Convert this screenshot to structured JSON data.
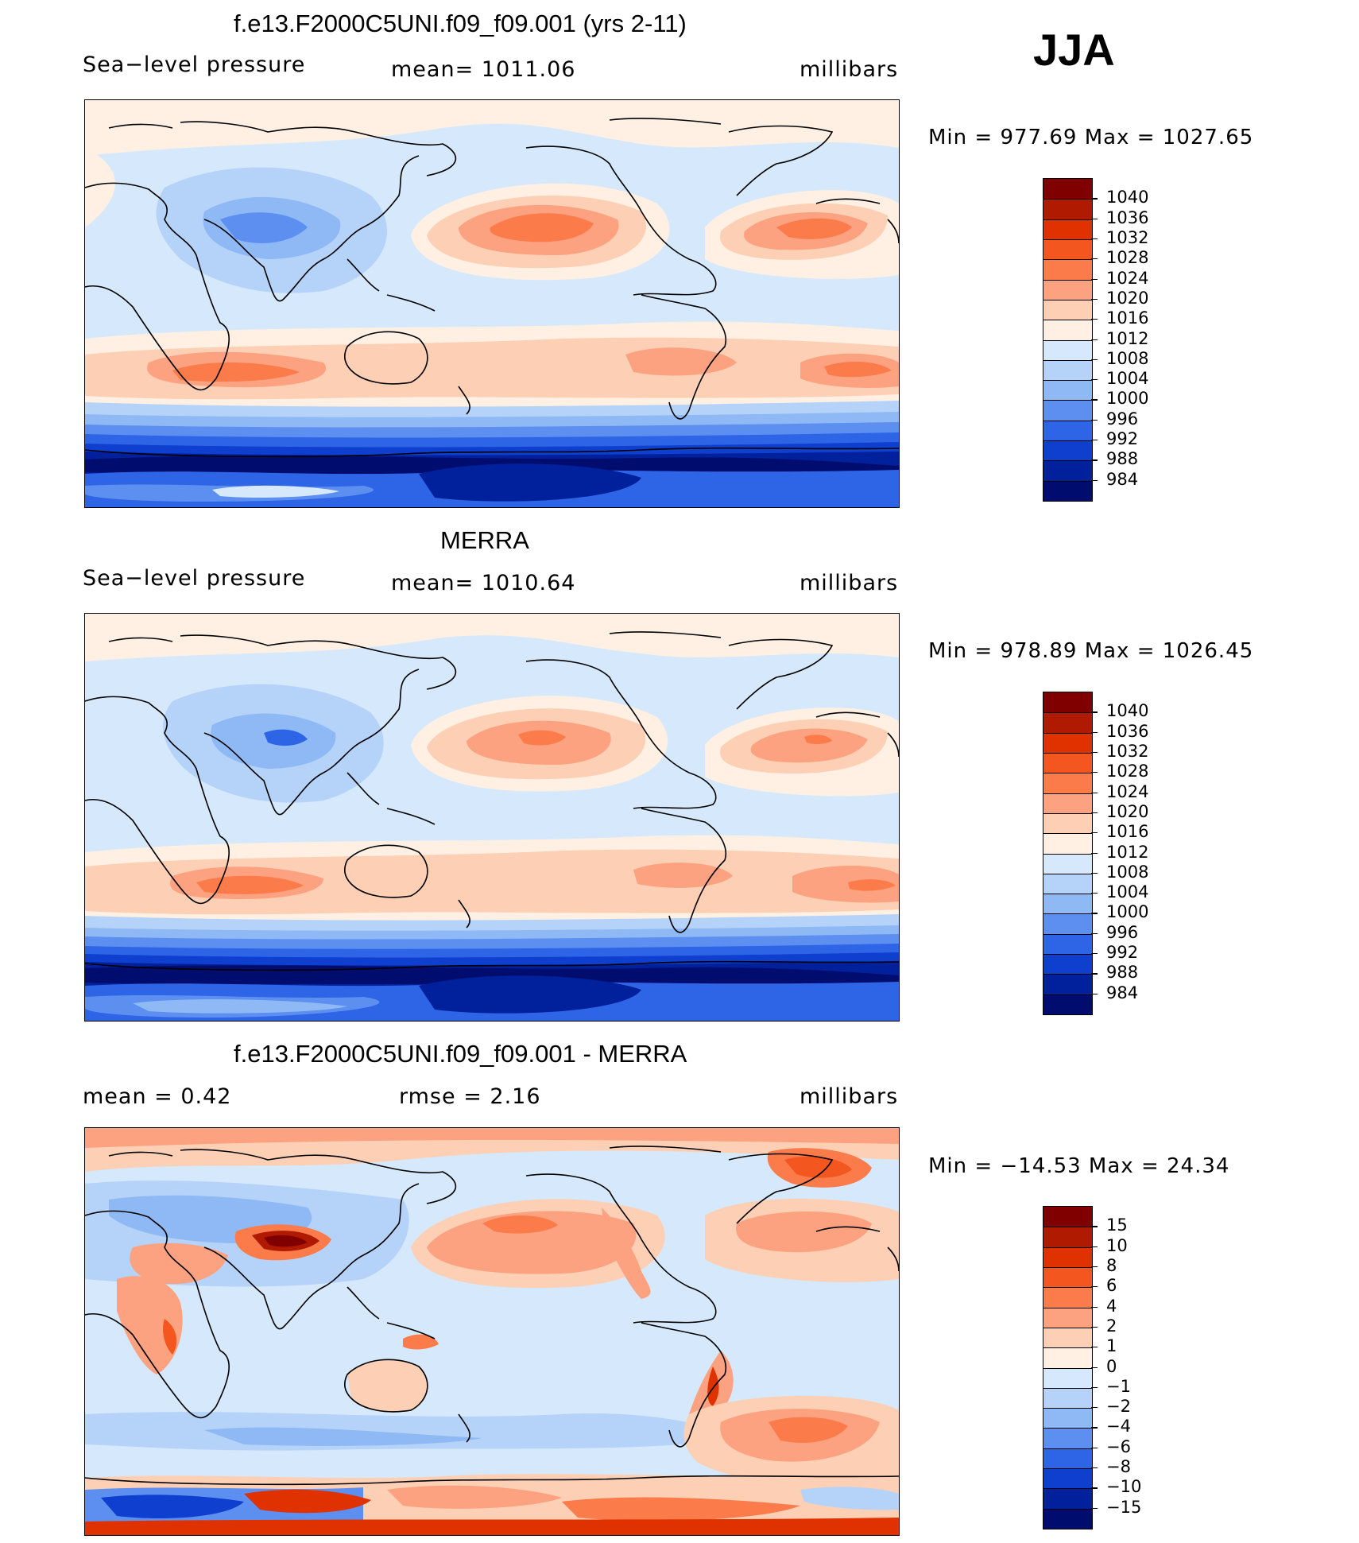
{
  "season": "JJA",
  "panels": [
    {
      "title": "f.e13.F2000C5UNI.f09_f09.001 (yrs 2-11)",
      "left_label": "Sea−level pressure",
      "mid_label": "mean=  1011.06",
      "units": "millibars",
      "minmax": "Min  =  977.69  Max  =  1027.65",
      "colorbar_levels": [
        "1040",
        "1036",
        "1032",
        "1028",
        "1024",
        "1020",
        "1016",
        "1012",
        "1008",
        "1004",
        "1000",
        "996",
        "992",
        "988",
        "984"
      ],
      "colorbar_colors": [
        "#800000",
        "#b01a00",
        "#e03200",
        "#f4561f",
        "#fb7b4b",
        "#fca280",
        "#fdd0b5",
        "#fff0e3",
        "#d6e8fb",
        "#b5d3f8",
        "#8eb9f5",
        "#5d8ff0",
        "#2e64e6",
        "#0f3fcf",
        "#00209c",
        "#000c6e"
      ]
    },
    {
      "title": "MERRA",
      "left_label": "Sea−level pressure",
      "mid_label": "mean=  1010.64",
      "units": "millibars",
      "minmax": "Min  =  978.89  Max  =  1026.45",
      "colorbar_levels": [
        "1040",
        "1036",
        "1032",
        "1028",
        "1024",
        "1020",
        "1016",
        "1012",
        "1008",
        "1004",
        "1000",
        "996",
        "992",
        "988",
        "984"
      ],
      "colorbar_colors": [
        "#800000",
        "#b01a00",
        "#e03200",
        "#f4561f",
        "#fb7b4b",
        "#fca280",
        "#fdd0b5",
        "#fff0e3",
        "#d6e8fb",
        "#b5d3f8",
        "#8eb9f5",
        "#5d8ff0",
        "#2e64e6",
        "#0f3fcf",
        "#00209c",
        "#000c6e"
      ]
    },
    {
      "title": "f.e13.F2000C5UNI.f09_f09.001 - MERRA",
      "left_label": "mean =     0.42",
      "mid_label": "rmse =     2.16",
      "units": "millibars",
      "minmax": "Min  =  −14.53  Max  =    24.34",
      "colorbar_levels": [
        "15",
        "10",
        "8",
        "6",
        "4",
        "2",
        "1",
        "0",
        "−1",
        "−2",
        "−4",
        "−6",
        "−8",
        "−10",
        "−15"
      ],
      "colorbar_colors": [
        "#800000",
        "#b01a00",
        "#e03200",
        "#f4561f",
        "#fb7b4b",
        "#fca280",
        "#fdd0b5",
        "#fff0e3",
        "#d6e8fb",
        "#b5d3f8",
        "#8eb9f5",
        "#5d8ff0",
        "#2e64e6",
        "#0f3fcf",
        "#00209c",
        "#000c6e"
      ]
    }
  ]
}
